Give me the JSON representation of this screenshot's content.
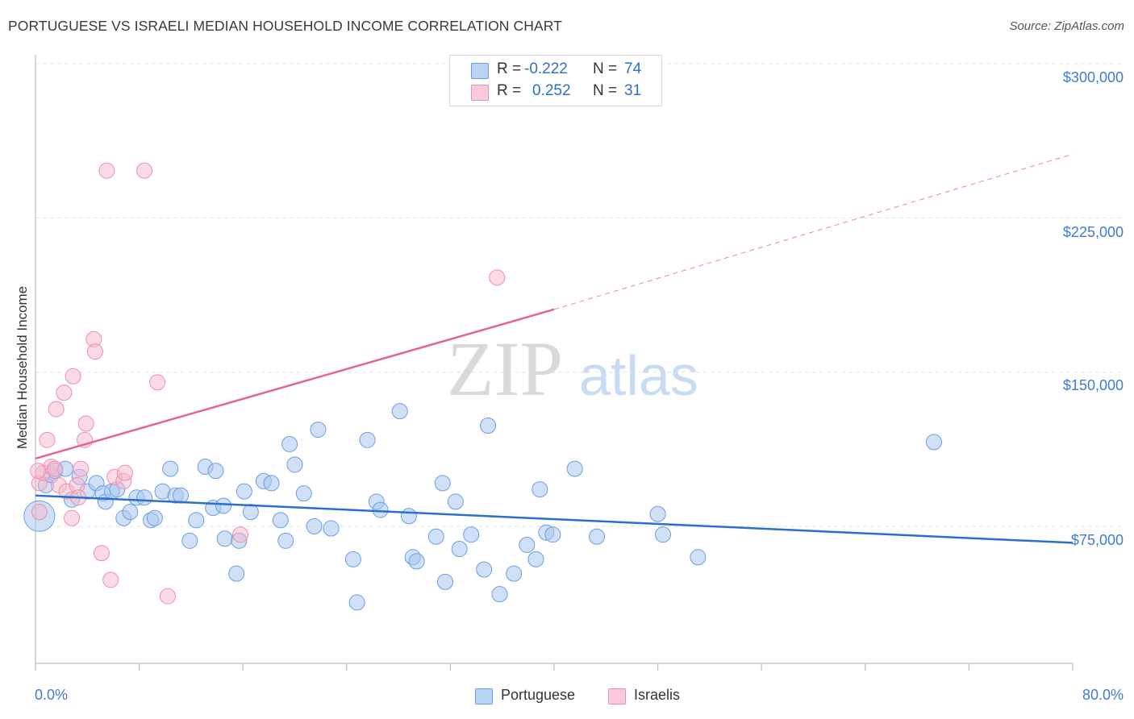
{
  "title": "PORTUGUESE VS ISRAELI MEDIAN HOUSEHOLD INCOME CORRELATION CHART",
  "source": "Source: ZipAtlas.com",
  "watermark": {
    "zip": "ZIP",
    "atlas": "atlas"
  },
  "legend": {
    "rows": [
      {
        "r_label": "R =",
        "r_value": "-0.222",
        "n_label": "N =",
        "n_value": "74",
        "color": "#a9c8f0"
      },
      {
        "r_label": "R =",
        "r_value": "0.252",
        "n_label": "N =",
        "n_value": "31",
        "color": "#f5b8cb"
      }
    ]
  },
  "bottom_legend": [
    {
      "label": "Portuguese",
      "color": "#a9c8f0"
    },
    {
      "label": "Israelis",
      "color": "#f5b8cb"
    }
  ],
  "chart_data": {
    "type": "scatter",
    "title": "PORTUGUESE VS ISRAELI MEDIAN HOUSEHOLD INCOME CORRELATION CHART",
    "xlabel": "",
    "ylabel": "Median Household Income",
    "xlim": [
      0,
      80
    ],
    "ylim": [
      0,
      310000
    ],
    "x_tick_labels": [
      "0.0%",
      "80.0%"
    ],
    "y_ticks": [
      75000,
      150000,
      225000,
      300000
    ],
    "y_tick_labels": [
      "$75,000",
      "$150,000",
      "$225,000",
      "$300,000"
    ],
    "grid": true,
    "legend_position": "top-center",
    "colors": {
      "portuguese": "#5b93e0",
      "israelis": "#ef87a6",
      "portuguese_line": "#2a6fd0",
      "israelis_line": "#e3658f"
    },
    "series": [
      {
        "name": "Portuguese",
        "points": [
          [
            0.3,
            80000
          ],
          [
            0.8,
            95000
          ],
          [
            1.2,
            100000
          ],
          [
            1.5,
            102000
          ],
          [
            2.3,
            103000
          ],
          [
            2.8,
            88000
          ],
          [
            3.4,
            99000
          ],
          [
            4.0,
            92000
          ],
          [
            4.7,
            96000
          ],
          [
            5.2,
            91000
          ],
          [
            5.4,
            87000
          ],
          [
            5.9,
            92000
          ],
          [
            6.3,
            93000
          ],
          [
            6.8,
            79000
          ],
          [
            7.3,
            82000
          ],
          [
            7.8,
            89000
          ],
          [
            8.4,
            89000
          ],
          [
            8.9,
            78000
          ],
          [
            9.2,
            79000
          ],
          [
            9.8,
            92000
          ],
          [
            10.4,
            103000
          ],
          [
            10.8,
            90000
          ],
          [
            11.2,
            90000
          ],
          [
            11.9,
            68000
          ],
          [
            12.4,
            78000
          ],
          [
            13.1,
            104000
          ],
          [
            13.7,
            84000
          ],
          [
            13.9,
            102000
          ],
          [
            14.5,
            85000
          ],
          [
            14.6,
            69000
          ],
          [
            15.5,
            52000
          ],
          [
            15.7,
            68000
          ],
          [
            16.1,
            92000
          ],
          [
            16.6,
            82000
          ],
          [
            17.6,
            97000
          ],
          [
            18.2,
            96000
          ],
          [
            18.9,
            78000
          ],
          [
            19.3,
            68000
          ],
          [
            19.6,
            115000
          ],
          [
            20.0,
            105000
          ],
          [
            20.7,
            91000
          ],
          [
            21.5,
            75000
          ],
          [
            21.8,
            122000
          ],
          [
            22.8,
            74000
          ],
          [
            24.5,
            59000
          ],
          [
            24.8,
            38000
          ],
          [
            25.6,
            117000
          ],
          [
            26.3,
            87000
          ],
          [
            26.6,
            83000
          ],
          [
            28.1,
            131000
          ],
          [
            28.8,
            80000
          ],
          [
            29.1,
            60000
          ],
          [
            29.4,
            58000
          ],
          [
            30.9,
            70000
          ],
          [
            31.4,
            96000
          ],
          [
            31.6,
            48000
          ],
          [
            32.4,
            87000
          ],
          [
            32.7,
            64000
          ],
          [
            33.6,
            71000
          ],
          [
            34.6,
            54000
          ],
          [
            34.9,
            124000
          ],
          [
            35.8,
            42000
          ],
          [
            36.9,
            52000
          ],
          [
            37.9,
            66000
          ],
          [
            38.6,
            59000
          ],
          [
            38.9,
            93000
          ],
          [
            39.4,
            72000
          ],
          [
            39.9,
            71000
          ],
          [
            41.6,
            103000
          ],
          [
            43.3,
            70000
          ],
          [
            48.0,
            81000
          ],
          [
            48.4,
            71000
          ],
          [
            51.1,
            60000
          ],
          [
            69.3,
            116000
          ]
        ]
      },
      {
        "name": "Israelis",
        "points": [
          [
            0.3,
            96000
          ],
          [
            0.3,
            82000
          ],
          [
            0.6,
            101000
          ],
          [
            0.9,
            117000
          ],
          [
            1.2,
            104000
          ],
          [
            1.5,
            103000
          ],
          [
            1.6,
            132000
          ],
          [
            1.8,
            95000
          ],
          [
            2.2,
            140000
          ],
          [
            2.4,
            92000
          ],
          [
            2.8,
            79000
          ],
          [
            2.9,
            148000
          ],
          [
            3.2,
            95000
          ],
          [
            3.3,
            89000
          ],
          [
            3.5,
            103000
          ],
          [
            3.8,
            117000
          ],
          [
            3.9,
            125000
          ],
          [
            4.5,
            166000
          ],
          [
            4.6,
            160000
          ],
          [
            5.1,
            62000
          ],
          [
            5.5,
            248000
          ],
          [
            5.8,
            49000
          ],
          [
            6.1,
            99000
          ],
          [
            6.8,
            97000
          ],
          [
            6.9,
            101000
          ],
          [
            8.4,
            248000
          ],
          [
            9.4,
            145000
          ],
          [
            10.2,
            41000
          ],
          [
            15.8,
            71000
          ],
          [
            35.6,
            196000
          ],
          [
            0.2,
            102000
          ]
        ]
      }
    ],
    "trend_lines": [
      {
        "series": "Portuguese",
        "from": [
          0,
          90000
        ],
        "to": [
          80,
          67000
        ],
        "style": "solid"
      },
      {
        "series": "Israelis",
        "from": [
          0,
          108000
        ],
        "to": [
          40,
          180500
        ],
        "style": "solid"
      },
      {
        "series": "Israelis",
        "from": [
          40,
          180500
        ],
        "to": [
          80,
          256000
        ],
        "style": "dashed"
      }
    ]
  }
}
